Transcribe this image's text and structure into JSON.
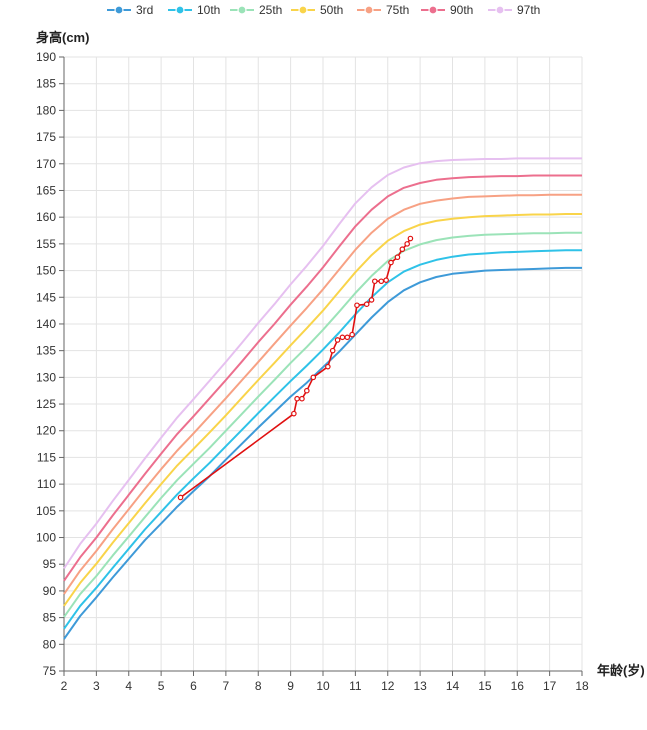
{
  "chart_data": {
    "type": "line",
    "ylabel": "身高(cm)",
    "xlabel": "年龄(岁)",
    "xlim": [
      2,
      18
    ],
    "ylim": [
      75,
      190
    ],
    "x_ticks": [
      2,
      3,
      4,
      5,
      6,
      7,
      8,
      9,
      10,
      11,
      12,
      13,
      14,
      15,
      16,
      17,
      18
    ],
    "y_ticks": [
      75,
      80,
      85,
      90,
      95,
      100,
      105,
      110,
      115,
      120,
      125,
      130,
      135,
      140,
      145,
      150,
      155,
      160,
      165,
      170,
      175,
      180,
      185,
      190
    ],
    "grid": true,
    "legend_position": "top",
    "x": [
      2,
      2.5,
      3,
      3.5,
      4,
      4.5,
      5,
      5.5,
      6,
      6.5,
      7,
      7.5,
      8,
      8.5,
      9,
      9.5,
      10,
      10.5,
      11,
      11.5,
      12,
      12.5,
      13,
      13.5,
      14,
      14.5,
      15,
      15.5,
      16,
      16.5,
      17,
      17.5,
      18
    ],
    "series": [
      {
        "name": "3rd",
        "color": "#3e9ad8",
        "values": [
          81.0,
          85.3,
          88.8,
          92.5,
          96.0,
          99.5,
          102.6,
          105.8,
          108.7,
          111.5,
          114.6,
          117.6,
          120.6,
          123.5,
          126.4,
          129.0,
          131.9,
          134.8,
          138.0,
          141.2,
          144.1,
          146.3,
          147.8,
          148.8,
          149.4,
          149.7,
          150.0,
          150.1,
          150.2,
          150.3,
          150.4,
          150.5,
          150.5
        ]
      },
      {
        "name": "10th",
        "color": "#2fc2e8",
        "values": [
          82.9,
          87.2,
          90.6,
          94.3,
          97.9,
          101.5,
          104.8,
          108.1,
          111.1,
          114.0,
          117.1,
          120.2,
          123.3,
          126.3,
          129.3,
          132.2,
          135.2,
          138.4,
          141.8,
          145.0,
          147.8,
          149.8,
          151.1,
          152.0,
          152.6,
          153.0,
          153.2,
          153.4,
          153.5,
          153.6,
          153.7,
          153.8,
          153.8
        ]
      },
      {
        "name": "25th",
        "color": "#9be3b8",
        "values": [
          85.1,
          89.4,
          92.8,
          96.6,
          100.2,
          103.8,
          107.4,
          110.8,
          113.8,
          116.8,
          120.0,
          123.2,
          126.4,
          129.5,
          132.7,
          135.7,
          138.9,
          142.3,
          145.8,
          149.0,
          151.8,
          153.7,
          154.9,
          155.7,
          156.2,
          156.5,
          156.7,
          156.8,
          156.9,
          157.0,
          157.0,
          157.1,
          157.1
        ]
      },
      {
        "name": "50th",
        "color": "#f9d44a",
        "values": [
          87.2,
          91.5,
          95.1,
          99.0,
          102.7,
          106.4,
          110.0,
          113.5,
          116.6,
          119.7,
          122.9,
          126.2,
          129.5,
          132.7,
          136.0,
          139.2,
          142.5,
          146.1,
          149.7,
          152.9,
          155.6,
          157.4,
          158.6,
          159.3,
          159.7,
          160.0,
          160.2,
          160.3,
          160.4,
          160.5,
          160.5,
          160.6,
          160.6
        ]
      },
      {
        "name": "75th",
        "color": "#f7a184",
        "values": [
          89.4,
          93.8,
          97.5,
          101.5,
          105.3,
          109.1,
          112.8,
          116.3,
          119.5,
          122.8,
          126.1,
          129.5,
          132.9,
          136.3,
          139.7,
          143.0,
          146.5,
          150.2,
          153.9,
          157.1,
          159.7,
          161.4,
          162.5,
          163.1,
          163.5,
          163.8,
          163.9,
          164.0,
          164.1,
          164.1,
          164.2,
          164.2,
          164.2
        ]
      },
      {
        "name": "90th",
        "color": "#ec6f8e",
        "values": [
          91.9,
          96.3,
          100.0,
          104.1,
          108.0,
          111.9,
          115.7,
          119.4,
          122.7,
          126.1,
          129.5,
          133.0,
          136.6,
          140.0,
          143.6,
          147.0,
          150.6,
          154.5,
          158.3,
          161.4,
          163.9,
          165.5,
          166.4,
          167.0,
          167.3,
          167.5,
          167.6,
          167.7,
          167.7,
          167.8,
          167.8,
          167.8,
          167.8
        ]
      },
      {
        "name": "97th",
        "color": "#e6c0f0",
        "values": [
          94.2,
          98.8,
          102.6,
          106.8,
          110.8,
          114.8,
          118.7,
          122.5,
          125.9,
          129.4,
          132.9,
          136.5,
          140.2,
          143.7,
          147.4,
          150.9,
          154.6,
          158.7,
          162.6,
          165.6,
          167.9,
          169.3,
          170.1,
          170.5,
          170.7,
          170.8,
          170.9,
          170.9,
          171.0,
          171.0,
          171.0,
          171.0,
          171.0
        ]
      }
    ],
    "measurement": {
      "color": "#e01010",
      "points": [
        [
          5.6,
          107.5
        ],
        [
          9.1,
          123.2
        ],
        [
          9.2,
          126.0
        ],
        [
          9.35,
          126.0
        ],
        [
          9.5,
          127.5
        ],
        [
          9.7,
          130.0
        ],
        [
          10.15,
          132.0
        ],
        [
          10.3,
          135.0
        ],
        [
          10.45,
          137.0
        ],
        [
          10.6,
          137.5
        ],
        [
          10.75,
          137.5
        ],
        [
          10.9,
          138.0
        ],
        [
          11.05,
          143.5
        ],
        [
          11.35,
          143.7
        ],
        [
          11.5,
          144.5
        ],
        [
          11.6,
          148.0
        ],
        [
          11.8,
          148.0
        ],
        [
          11.95,
          148.2
        ],
        [
          12.1,
          151.5
        ],
        [
          12.3,
          152.5
        ],
        [
          12.45,
          154.0
        ],
        [
          12.6,
          155.0
        ],
        [
          12.7,
          156.0
        ]
      ]
    }
  }
}
